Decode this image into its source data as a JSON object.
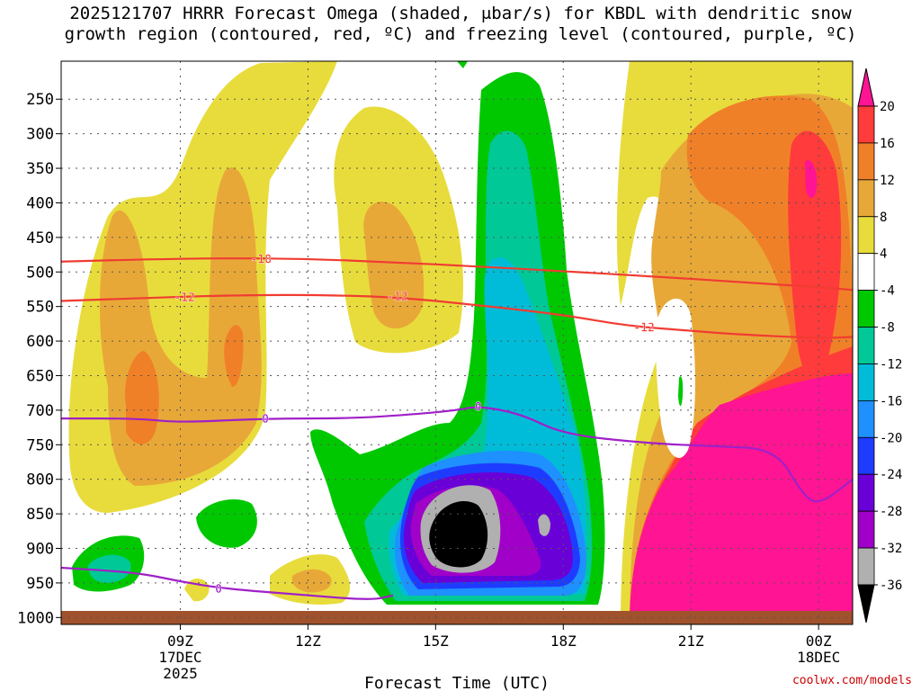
{
  "title": {
    "line1": "2025121707 HRRR Forecast Omega (shaded, μbar/s) for KBDL with dendritic snow",
    "line2": "growth region (contoured, red, ºC) and freezing level (contoured, purple, ºC)"
  },
  "credit": "coolwx.com/models",
  "chart_data": {
    "type": "heatmap",
    "title": "2025121707 HRRR Forecast Omega (shaded, μbar/s) for KBDL with dendritic snow growth region (contoured, red, ºC) and freezing level (contoured, purple, ºC)",
    "xlabel": "Forecast Time (UTC)",
    "ylabel": "",
    "x_range_hours": [
      6.2,
      24.8
    ],
    "y_range_mb": [
      1010,
      195
    ],
    "y_ticks": [
      250,
      300,
      350,
      400,
      450,
      500,
      550,
      600,
      650,
      700,
      750,
      800,
      850,
      900,
      950,
      1000
    ],
    "x_ticks": [
      {
        "hour": 9,
        "label": "09Z",
        "sub1": "17DEC",
        "sub2": "2025"
      },
      {
        "hour": 12,
        "label": "12Z",
        "sub1": "",
        "sub2": ""
      },
      {
        "hour": 15,
        "label": "15Z",
        "sub1": "",
        "sub2": ""
      },
      {
        "hour": 18,
        "label": "18Z",
        "sub1": "",
        "sub2": ""
      },
      {
        "hour": 21,
        "label": "21Z",
        "sub1": "",
        "sub2": ""
      },
      {
        "hour": 24,
        "label": "00Z",
        "sub1": "18DEC",
        "sub2": ""
      }
    ],
    "grid": true,
    "legend": "right",
    "colorbar": [
      {
        "label": "20",
        "color": "#ff1493"
      },
      {
        "label": "16",
        "color": "#ff3b3b"
      },
      {
        "label": "12",
        "color": "#f08028"
      },
      {
        "label": "8",
        "color": "#e8a838"
      },
      {
        "label": "4",
        "color": "#e8dc3c"
      },
      {
        "label": "-4",
        "color": "#ffffff"
      },
      {
        "label": "-8",
        "color": "#00c800"
      },
      {
        "label": "-12",
        "color": "#00c896"
      },
      {
        "label": "-16",
        "color": "#00bcd8"
      },
      {
        "label": "-20",
        "color": "#1e90ff"
      },
      {
        "label": "-24",
        "color": "#1e3cff"
      },
      {
        "label": "-28",
        "color": "#6a00d8"
      },
      {
        "label": "-32",
        "color": "#a000c8"
      },
      {
        "label": "-36",
        "color": "#b0b0b0"
      },
      {
        "label": "",
        "color": "#000000"
      }
    ],
    "contours": [
      {
        "name": "-18",
        "color": "#f03c32",
        "label": "-18",
        "points": [
          [
            6.2,
            485
          ],
          [
            8,
            482
          ],
          [
            10,
            480
          ],
          [
            12,
            481
          ],
          [
            14,
            486
          ],
          [
            16,
            492
          ],
          [
            18,
            499
          ],
          [
            20,
            506
          ],
          [
            22,
            514
          ],
          [
            24,
            522
          ],
          [
            24.8,
            526
          ]
        ]
      },
      {
        "name": "-12",
        "color": "#f03c32",
        "label": "-12",
        "points": [
          [
            6.2,
            542
          ],
          [
            8,
            538
          ],
          [
            10,
            534
          ],
          [
            12,
            533
          ],
          [
            14,
            536
          ],
          [
            16,
            548
          ],
          [
            18,
            562
          ],
          [
            19.5,
            578
          ],
          [
            21,
            585
          ],
          [
            22,
            590
          ],
          [
            24,
            596
          ],
          [
            24.8,
            594
          ]
        ]
      },
      {
        "name": "0",
        "color": "#a020c8",
        "label": "0",
        "points": [
          [
            6.2,
            712
          ],
          [
            8,
            712
          ],
          [
            9,
            718
          ],
          [
            11,
            712
          ],
          [
            13,
            712
          ],
          [
            14.5,
            706
          ],
          [
            15.5,
            700
          ],
          [
            16,
            694
          ],
          [
            17,
            705
          ],
          [
            18,
            735
          ],
          [
            20,
            748
          ],
          [
            21.5,
            752
          ],
          [
            23,
            756
          ],
          [
            23.6,
            820
          ],
          [
            24,
            838
          ],
          [
            24.8,
            800
          ]
        ]
      },
      {
        "name": "0-low",
        "color": "#a020c8",
        "label": "0",
        "points": [
          [
            6.2,
            928
          ],
          [
            8,
            935
          ],
          [
            9,
            948
          ],
          [
            10,
            958
          ],
          [
            12,
            968
          ],
          [
            13.5,
            975
          ],
          [
            14,
            968
          ]
        ]
      }
    ],
    "labels_shown": [
      {
        "text": "-18",
        "hour": 10.9,
        "mb": 481
      },
      {
        "text": "-12",
        "hour": 9.1,
        "mb": 536
      },
      {
        "text": "-12",
        "hour": 14.1,
        "mb": 535
      },
      {
        "text": "-12",
        "hour": 19.9,
        "mb": 580
      },
      {
        "text": "0",
        "hour": 11.0,
        "mb": 712
      },
      {
        "text": "0",
        "hour": 16.0,
        "mb": 694
      },
      {
        "text": "0",
        "hour": 9.9,
        "mb": 958
      }
    ]
  }
}
